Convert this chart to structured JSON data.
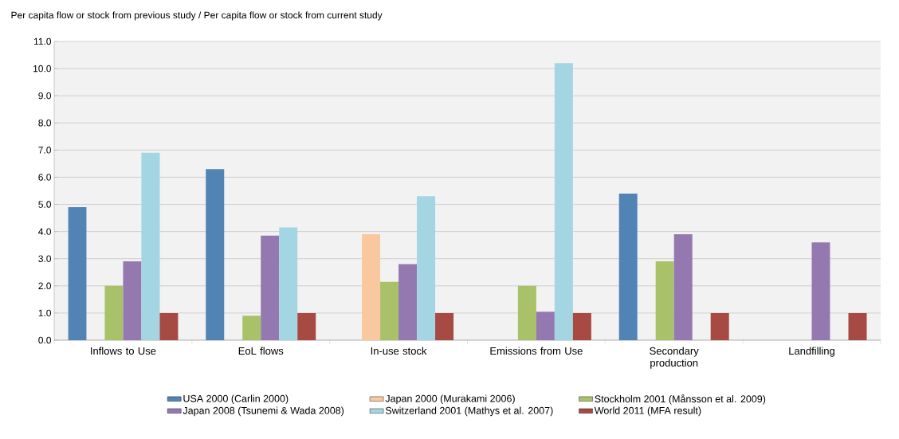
{
  "chart_data": {
    "type": "bar",
    "title": "Per capita flow or stock from previous study / Per capita flow or stock from current study",
    "categories": [
      "Inflows to Use",
      "EoL flows",
      "In-use stock",
      "Emissions from Use",
      "Secondary production",
      "Landfilling"
    ],
    "series": [
      {
        "name": "USA 2000 (Carlin 2000)",
        "color": "#5283b5",
        "values": [
          4.9,
          6.3,
          null,
          null,
          5.4,
          null
        ]
      },
      {
        "name": "Japan 2000 (Murakami 2006)",
        "color": "#f9c89e",
        "values": [
          null,
          null,
          3.9,
          null,
          null,
          null
        ]
      },
      {
        "name": "Stockholm 2001 (Månsson et al. 2009)",
        "color": "#a9c26a",
        "values": [
          2.0,
          0.9,
          2.15,
          2.0,
          2.9,
          null
        ]
      },
      {
        "name": "Japan 2008 (Tsunemi & Wada 2008)",
        "color": "#9479b0",
        "values": [
          2.9,
          3.85,
          2.8,
          1.05,
          3.9,
          3.6
        ]
      },
      {
        "name": "Switzerland 2001 (Mathys et al. 2007)",
        "color": "#a3d5e3",
        "values": [
          6.9,
          4.15,
          5.3,
          10.2,
          null,
          null
        ]
      },
      {
        "name": "World 2011 (MFA result)",
        "color": "#a64a43",
        "values": [
          1.0,
          1.0,
          1.0,
          1.0,
          1.0,
          1.0
        ]
      }
    ],
    "ylim": [
      0,
      11
    ],
    "yticks": [
      {
        "value": 0,
        "label": "0.0"
      },
      {
        "value": 1,
        "label": "1.0"
      },
      {
        "value": 2,
        "label": "2.0"
      },
      {
        "value": 3,
        "label": "3.0"
      },
      {
        "value": 4,
        "label": "4.0"
      },
      {
        "value": 5,
        "label": "5.0"
      },
      {
        "value": 6,
        "label": "6.0"
      },
      {
        "value": 7,
        "label": "7.0"
      },
      {
        "value": 8,
        "label": "8.0"
      },
      {
        "value": 9,
        "label": "9.0"
      },
      {
        "value": 10,
        "label": "10.0"
      },
      {
        "value": 11,
        "label": "11.0"
      }
    ],
    "grid": "y",
    "legend": "bottom"
  }
}
